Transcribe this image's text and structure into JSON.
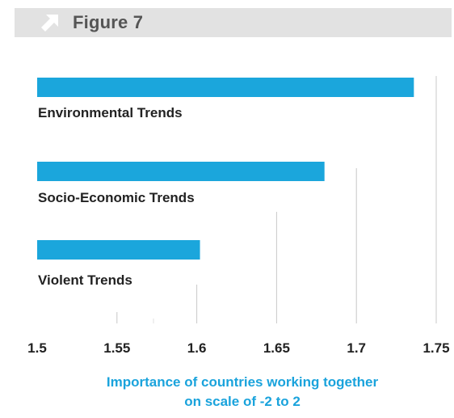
{
  "header": {
    "figure_label": "Figure 7",
    "icon": "arrow-up-right-icon"
  },
  "colors": {
    "bar": "#1ba6dc",
    "caption": "#1aa3dc",
    "header_bg": "#e2e2e2",
    "header_icon": "#ffffff",
    "text": "#222222",
    "grid": "#c8c8c8"
  },
  "chart_data": {
    "type": "bar",
    "orientation": "horizontal",
    "categories": [
      "Environmental Trends",
      "Socio-Economic Trends",
      "Violent Trends"
    ],
    "values": [
      1.736,
      1.68,
      1.602
    ],
    "xlim": [
      1.5,
      1.75
    ],
    "xticks": [
      "1.5",
      "1.55",
      "1.6",
      "1.65",
      "1.7",
      "1.75"
    ],
    "xlabel_lines": [
      "Importance of countries working together",
      "on scale of -2 to 2"
    ],
    "grid": "vertical"
  }
}
